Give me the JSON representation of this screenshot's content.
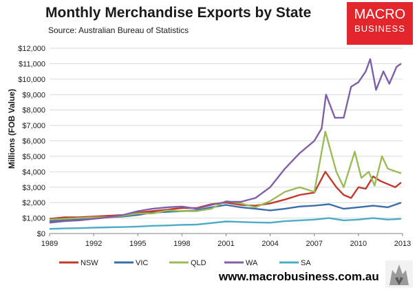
{
  "header": {
    "title": "Monthly Merchandise Exports by State",
    "source": "Source: Australian Bureau of Statistics"
  },
  "logo": {
    "line1": "MACRO",
    "line2": "BUSINESS"
  },
  "footer": {
    "url": "www.macrobusiness.com.au"
  },
  "chart_data": {
    "type": "line",
    "title": "Monthly Merchandise Exports by State",
    "ylabel": "Millions (FOB Value)",
    "xlabel": "",
    "xlim": [
      1989,
      2013
    ],
    "ylim": [
      0,
      12000
    ],
    "x_ticks": [
      1989,
      1992,
      1995,
      1998,
      2001,
      2004,
      2007,
      2010,
      2013
    ],
    "y_ticks": [
      0,
      1000,
      2000,
      3000,
      4000,
      5000,
      6000,
      7000,
      8000,
      9000,
      10000,
      11000,
      12000
    ],
    "y_tick_labels": [
      "$0",
      "$1,000",
      "$2,000",
      "$3,000",
      "$4,000",
      "$5,000",
      "$6,000",
      "$7,000",
      "$8,000",
      "$9,000",
      "$10,000",
      "$11,000",
      "$12,000"
    ],
    "grid": "horizontal",
    "legend_position": "bottom",
    "series": [
      {
        "name": "NSW",
        "color": "#c0392b",
        "points": [
          [
            1989,
            950
          ],
          [
            1990,
            1050
          ],
          [
            1991,
            1050
          ],
          [
            1992,
            1100
          ],
          [
            1993,
            1150
          ],
          [
            1994,
            1200
          ],
          [
            1995,
            1350
          ],
          [
            1996,
            1450
          ],
          [
            1997,
            1550
          ],
          [
            1998,
            1650
          ],
          [
            1999,
            1650
          ],
          [
            2000,
            1900
          ],
          [
            2001,
            2000
          ],
          [
            2002,
            1850
          ],
          [
            2003,
            1800
          ],
          [
            2004,
            1950
          ],
          [
            2005,
            2200
          ],
          [
            2006,
            2500
          ],
          [
            2007,
            2650
          ],
          [
            2007.75,
            4000
          ],
          [
            2008.5,
            3000
          ],
          [
            2009,
            2500
          ],
          [
            2009.5,
            2300
          ],
          [
            2010,
            3000
          ],
          [
            2010.5,
            2900
          ],
          [
            2011,
            3700
          ],
          [
            2011.5,
            3400
          ],
          [
            2012,
            3200
          ],
          [
            2012.5,
            3000
          ],
          [
            2012.9,
            3300
          ]
        ]
      },
      {
        "name": "VIC",
        "color": "#3a6eaa",
        "points": [
          [
            1989,
            800
          ],
          [
            1990,
            850
          ],
          [
            1991,
            900
          ],
          [
            1992,
            1000
          ],
          [
            1993,
            1050
          ],
          [
            1994,
            1100
          ],
          [
            1995,
            1200
          ],
          [
            1996,
            1350
          ],
          [
            1997,
            1400
          ],
          [
            1998,
            1450
          ],
          [
            1999,
            1500
          ],
          [
            2000,
            1700
          ],
          [
            2001,
            1850
          ],
          [
            2002,
            1700
          ],
          [
            2003,
            1600
          ],
          [
            2004,
            1500
          ],
          [
            2005,
            1600
          ],
          [
            2006,
            1750
          ],
          [
            2007,
            1800
          ],
          [
            2008,
            1900
          ],
          [
            2009,
            1600
          ],
          [
            2010,
            1700
          ],
          [
            2011,
            1800
          ],
          [
            2012,
            1700
          ],
          [
            2012.9,
            2000
          ]
        ]
      },
      {
        "name": "QLD",
        "color": "#9bbb59",
        "points": [
          [
            1989,
            900
          ],
          [
            1990,
            950
          ],
          [
            1991,
            1000
          ],
          [
            1992,
            1050
          ],
          [
            1993,
            1050
          ],
          [
            1994,
            1150
          ],
          [
            1995,
            1300
          ],
          [
            1996,
            1300
          ],
          [
            1997,
            1500
          ],
          [
            1998,
            1450
          ],
          [
            1999,
            1450
          ],
          [
            2000,
            1600
          ],
          [
            2001,
            2100
          ],
          [
            2002,
            1950
          ],
          [
            2003,
            1700
          ],
          [
            2004,
            2100
          ],
          [
            2005,
            2700
          ],
          [
            2006,
            3000
          ],
          [
            2007,
            2700
          ],
          [
            2007.75,
            6600
          ],
          [
            2008.5,
            4000
          ],
          [
            2009,
            3000
          ],
          [
            2009.75,
            5300
          ],
          [
            2010.2,
            3600
          ],
          [
            2010.7,
            4000
          ],
          [
            2011.1,
            3100
          ],
          [
            2011.6,
            5000
          ],
          [
            2012,
            4200
          ],
          [
            2012.9,
            3900
          ]
        ]
      },
      {
        "name": "WA",
        "color": "#7f5fa8",
        "points": [
          [
            1989,
            700
          ],
          [
            1990,
            800
          ],
          [
            1991,
            850
          ],
          [
            1992,
            950
          ],
          [
            1993,
            1050
          ],
          [
            1994,
            1200
          ],
          [
            1995,
            1450
          ],
          [
            1996,
            1600
          ],
          [
            1997,
            1700
          ],
          [
            1998,
            1750
          ],
          [
            1999,
            1600
          ],
          [
            2000,
            1850
          ],
          [
            2001,
            2050
          ],
          [
            2002,
            2050
          ],
          [
            2003,
            2300
          ],
          [
            2004,
            3000
          ],
          [
            2005,
            4200
          ],
          [
            2006,
            5200
          ],
          [
            2007,
            6000
          ],
          [
            2007.5,
            6800
          ],
          [
            2007.8,
            9000
          ],
          [
            2008.4,
            7500
          ],
          [
            2009,
            7500
          ],
          [
            2009.5,
            9500
          ],
          [
            2010,
            9800
          ],
          [
            2010.5,
            10500
          ],
          [
            2010.8,
            11300
          ],
          [
            2011.2,
            9300
          ],
          [
            2011.7,
            10500
          ],
          [
            2012.1,
            9700
          ],
          [
            2012.6,
            10800
          ],
          [
            2012.9,
            11000
          ]
        ]
      },
      {
        "name": "SA",
        "color": "#4bacc6",
        "points": [
          [
            1989,
            300
          ],
          [
            1990,
            330
          ],
          [
            1991,
            350
          ],
          [
            1992,
            380
          ],
          [
            1993,
            400
          ],
          [
            1994,
            420
          ],
          [
            1995,
            450
          ],
          [
            1996,
            500
          ],
          [
            1997,
            520
          ],
          [
            1998,
            560
          ],
          [
            1999,
            580
          ],
          [
            2000,
            680
          ],
          [
            2001,
            780
          ],
          [
            2002,
            750
          ],
          [
            2003,
            720
          ],
          [
            2004,
            700
          ],
          [
            2005,
            800
          ],
          [
            2006,
            850
          ],
          [
            2007,
            900
          ],
          [
            2008,
            1000
          ],
          [
            2009,
            850
          ],
          [
            2010,
            900
          ],
          [
            2011,
            1000
          ],
          [
            2012,
            900
          ],
          [
            2012.9,
            950
          ]
        ]
      }
    ]
  }
}
